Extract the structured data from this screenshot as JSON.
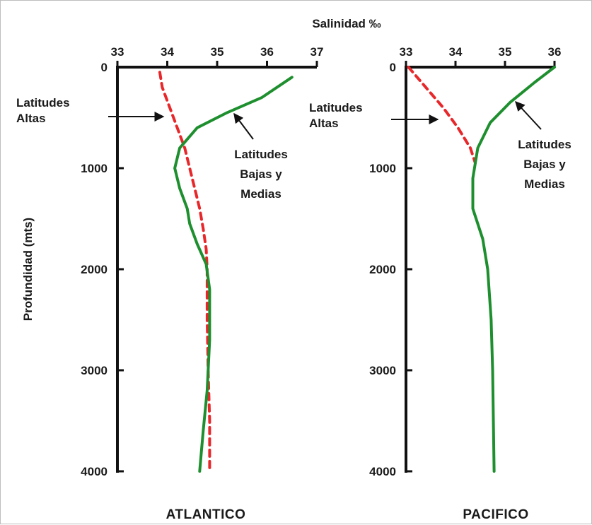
{
  "colors": {
    "high_latitudes": "#e8272a",
    "low_mid_latitudes": "#1e8f2e",
    "axis": "#111111"
  },
  "chart_data": {
    "type": "line",
    "shared_xlabel": "Salinidad ‰",
    "ylabel": "Profundidad (mts)",
    "ylim": [
      0,
      4000
    ],
    "yticks": [
      "0",
      "1000",
      "2000",
      "3000",
      "4000"
    ],
    "panels": [
      {
        "title": "ATLANTICO",
        "xlim": [
          33,
          37
        ],
        "xticks": [
          "33",
          "34",
          "35",
          "36",
          "37"
        ],
        "series": [
          {
            "name": "Latitudes Altas",
            "style": "dashed",
            "x": [
              33.85,
              33.9,
              34.05,
              34.2,
              34.35,
              34.45,
              34.55,
              34.65,
              34.72,
              34.78,
              34.8,
              34.8,
              34.82,
              34.85,
              34.85
            ],
            "y": [
              50,
              200,
              400,
              600,
              800,
              1000,
              1200,
              1400,
              1600,
              1800,
              2000,
              2500,
              3000,
              3500,
              4000
            ]
          },
          {
            "name": "Latitudes Bajas y Medias",
            "style": "solid",
            "x": [
              36.5,
              35.9,
              35.2,
              34.6,
              34.25,
              34.15,
              34.25,
              34.4,
              34.45,
              34.6,
              34.78,
              34.85,
              34.85,
              34.8,
              34.72,
              34.65
            ],
            "y": [
              100,
              300,
              450,
              600,
              800,
              1000,
              1200,
              1400,
              1550,
              1750,
              1950,
              2200,
              2700,
              3200,
              3600,
              4000
            ]
          }
        ]
      },
      {
        "title": "PACIFICO",
        "xlim": [
          33,
          36
        ],
        "xticks": [
          "33",
          "34",
          "35",
          "36"
        ],
        "series": [
          {
            "name": "Latitudes Altas",
            "style": "dashed",
            "x": [
              33.05,
              33.4,
              33.75,
              34.05,
              34.3,
              34.4
            ],
            "y": [
              0,
              200,
              400,
              600,
              800,
              950
            ]
          },
          {
            "name": "Latitudes Bajas y Medias",
            "style": "solid",
            "x": [
              36.0,
              35.6,
              35.1,
              34.7,
              34.45,
              34.35,
              34.35,
              34.55,
              34.65,
              34.72,
              34.75,
              34.78
            ],
            "y": [
              0,
              150,
              350,
              550,
              800,
              1100,
              1400,
              1700,
              2000,
              2500,
              3000,
              4000
            ]
          }
        ]
      }
    ],
    "annotations": [
      {
        "panel": 0,
        "lines": [
          "Latitudes",
          "Altas"
        ]
      },
      {
        "panel": 0,
        "lines": [
          "Latitudes",
          "Bajas y",
          "Medias"
        ]
      },
      {
        "panel": 1,
        "lines": [
          "Latitudes",
          "Altas"
        ]
      },
      {
        "panel": 1,
        "lines": [
          "Latitudes",
          "Bajas y",
          "Medias"
        ]
      }
    ]
  }
}
